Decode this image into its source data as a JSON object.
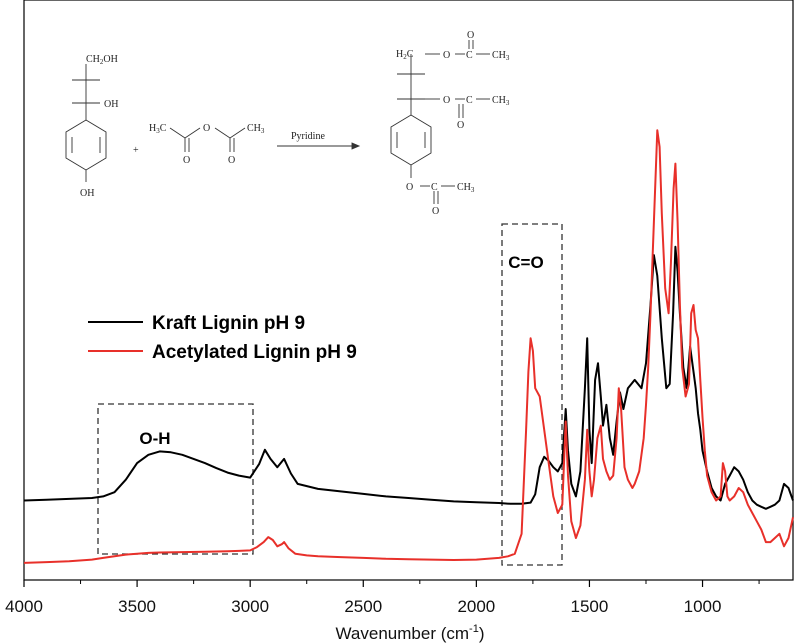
{
  "chart_data": {
    "type": "line",
    "title": "",
    "xlabel": "Wavenumber (cm",
    "xlabel_sup": "-1",
    "xlabel_close": ")",
    "ylabel": "",
    "xlim": [
      4000,
      600
    ],
    "x_reversed": true,
    "xticks": [
      4000,
      3500,
      3000,
      2500,
      2000,
      1500,
      1000
    ],
    "xtick_labels": [
      "4000",
      "3500",
      "3000",
      "2500",
      "2000",
      "1500",
      "1000"
    ],
    "grid": false,
    "legend_position": "center-left",
    "series": [
      {
        "name": "Kraft Lignin pH 9",
        "color": "#000000",
        "x": [
          4000,
          3900,
          3800,
          3700,
          3650,
          3600,
          3550,
          3500,
          3450,
          3400,
          3350,
          3300,
          3250,
          3200,
          3150,
          3100,
          3050,
          3000,
          2960,
          2935,
          2910,
          2880,
          2850,
          2820,
          2790,
          2700,
          2600,
          2500,
          2400,
          2300,
          2200,
          2100,
          2000,
          1900,
          1850,
          1800,
          1760,
          1740,
          1720,
          1700,
          1680,
          1660,
          1640,
          1620,
          1605,
          1595,
          1580,
          1560,
          1540,
          1520,
          1510,
          1500,
          1490,
          1475,
          1462,
          1450,
          1440,
          1425,
          1410,
          1395,
          1380,
          1365,
          1350,
          1330,
          1300,
          1270,
          1250,
          1230,
          1215,
          1200,
          1180,
          1160,
          1145,
          1130,
          1120,
          1110,
          1100,
          1085,
          1070,
          1055,
          1040,
          1030,
          1020,
          1010,
          1000,
          980,
          960,
          940,
          920,
          900,
          880,
          860,
          840,
          820,
          800,
          780,
          760,
          740,
          720,
          700,
          680,
          660,
          640,
          620,
          600
        ],
        "y": [
          0.03,
          0.032,
          0.034,
          0.036,
          0.04,
          0.05,
          0.08,
          0.12,
          0.14,
          0.148,
          0.146,
          0.14,
          0.13,
          0.12,
          0.108,
          0.097,
          0.09,
          0.085,
          0.118,
          0.152,
          0.13,
          0.11,
          0.13,
          0.095,
          0.07,
          0.058,
          0.052,
          0.046,
          0.04,
          0.036,
          0.032,
          0.028,
          0.026,
          0.024,
          0.022,
          0.022,
          0.025,
          0.045,
          0.11,
          0.135,
          0.125,
          0.11,
          0.1,
          0.12,
          0.25,
          0.15,
          0.07,
          0.04,
          0.1,
          0.3,
          0.42,
          0.2,
          0.12,
          0.32,
          0.36,
          0.28,
          0.21,
          0.26,
          0.18,
          0.14,
          0.22,
          0.29,
          0.25,
          0.3,
          0.32,
          0.3,
          0.36,
          0.5,
          0.62,
          0.57,
          0.42,
          0.3,
          0.31,
          0.48,
          0.64,
          0.58,
          0.48,
          0.35,
          0.3,
          0.4,
          0.34,
          0.3,
          0.24,
          0.2,
          0.15,
          0.1,
          0.06,
          0.04,
          0.03,
          0.07,
          0.09,
          0.11,
          0.1,
          0.08,
          0.05,
          0.03,
          0.02,
          0.015,
          0.01,
          0.015,
          0.02,
          0.03,
          0.07,
          0.06,
          0.03
        ]
      },
      {
        "name": "Acetylated Lignin pH 9",
        "color": "#e8302a",
        "x": [
          4000,
          3900,
          3800,
          3700,
          3650,
          3600,
          3550,
          3500,
          3450,
          3400,
          3300,
          3200,
          3100,
          3050,
          3000,
          2970,
          2940,
          2920,
          2900,
          2880,
          2860,
          2850,
          2830,
          2800,
          2750,
          2700,
          2600,
          2500,
          2400,
          2300,
          2200,
          2100,
          2000,
          1950,
          1900,
          1860,
          1830,
          1800,
          1780,
          1770,
          1760,
          1750,
          1740,
          1720,
          1700,
          1680,
          1660,
          1640,
          1620,
          1605,
          1595,
          1580,
          1560,
          1540,
          1520,
          1510,
          1500,
          1490,
          1480,
          1465,
          1450,
          1440,
          1425,
          1410,
          1395,
          1380,
          1370,
          1360,
          1345,
          1330,
          1310,
          1300,
          1280,
          1260,
          1250,
          1240,
          1230,
          1215,
          1200,
          1190,
          1180,
          1165,
          1150,
          1140,
          1128,
          1120,
          1110,
          1100,
          1090,
          1075,
          1060,
          1050,
          1040,
          1030,
          1020,
          1010,
          1000,
          990,
          980,
          960,
          940,
          920,
          910,
          900,
          890,
          880,
          860,
          840,
          820,
          800,
          780,
          760,
          740,
          720,
          700,
          680,
          660,
          640,
          620,
          600
        ],
        "y": [
          -0.12,
          -0.118,
          -0.116,
          -0.112,
          -0.108,
          -0.104,
          -0.1,
          -0.098,
          -0.096,
          -0.095,
          -0.094,
          -0.093,
          -0.092,
          -0.091,
          -0.09,
          -0.082,
          -0.07,
          -0.058,
          -0.065,
          -0.08,
          -0.075,
          -0.07,
          -0.085,
          -0.098,
          -0.102,
          -0.104,
          -0.106,
          -0.108,
          -0.11,
          -0.111,
          -0.112,
          -0.113,
          -0.112,
          -0.11,
          -0.108,
          -0.104,
          -0.098,
          -0.05,
          0.2,
          0.34,
          0.42,
          0.39,
          0.3,
          0.28,
          0.2,
          0.12,
          0.04,
          0.0,
          0.02,
          0.22,
          0.09,
          -0.02,
          -0.06,
          -0.03,
          0.08,
          0.2,
          0.1,
          0.04,
          0.08,
          0.18,
          0.21,
          0.13,
          0.1,
          0.08,
          0.09,
          0.18,
          0.3,
          0.25,
          0.11,
          0.08,
          0.06,
          0.07,
          0.1,
          0.18,
          0.26,
          0.35,
          0.48,
          0.7,
          0.92,
          0.88,
          0.72,
          0.54,
          0.48,
          0.6,
          0.78,
          0.84,
          0.7,
          0.5,
          0.35,
          0.28,
          0.31,
          0.48,
          0.5,
          0.44,
          0.42,
          0.32,
          0.23,
          0.15,
          0.09,
          0.05,
          0.03,
          0.04,
          0.12,
          0.1,
          0.04,
          0.03,
          0.04,
          0.06,
          0.05,
          0.02,
          0.0,
          -0.02,
          -0.04,
          -0.07,
          -0.07,
          -0.06,
          -0.05,
          -0.08,
          -0.06,
          -0.01
        ]
      }
    ],
    "annotations": [
      {
        "label": "O-H",
        "x_range": [
          3670,
          3000
        ]
      },
      {
        "label": "C=O",
        "x_range": [
          1900,
          1625
        ]
      }
    ]
  },
  "scheme": {
    "ch2oh": "CH",
    "ch2oh_sub": "2",
    "ch2oh_end": "OH",
    "oh_side": "OH",
    "oh_ring": "OH",
    "anhydride_left": "H",
    "anhydride_left_sub": "3",
    "anhydride_left_end": "C",
    "anhydride_o": "O",
    "anhydride_right": "CH",
    "anhydride_right_sub": "3",
    "carbonyl_o": "O",
    "plus": "+",
    "reagent": "Pyridine",
    "prod_top_h": "H",
    "prod_top_h_sub": "2",
    "prod_top_c": "C",
    "prod_o": "O",
    "prod_c": "C",
    "prod_ch3": "CH",
    "prod_ch3_sub": "3"
  }
}
